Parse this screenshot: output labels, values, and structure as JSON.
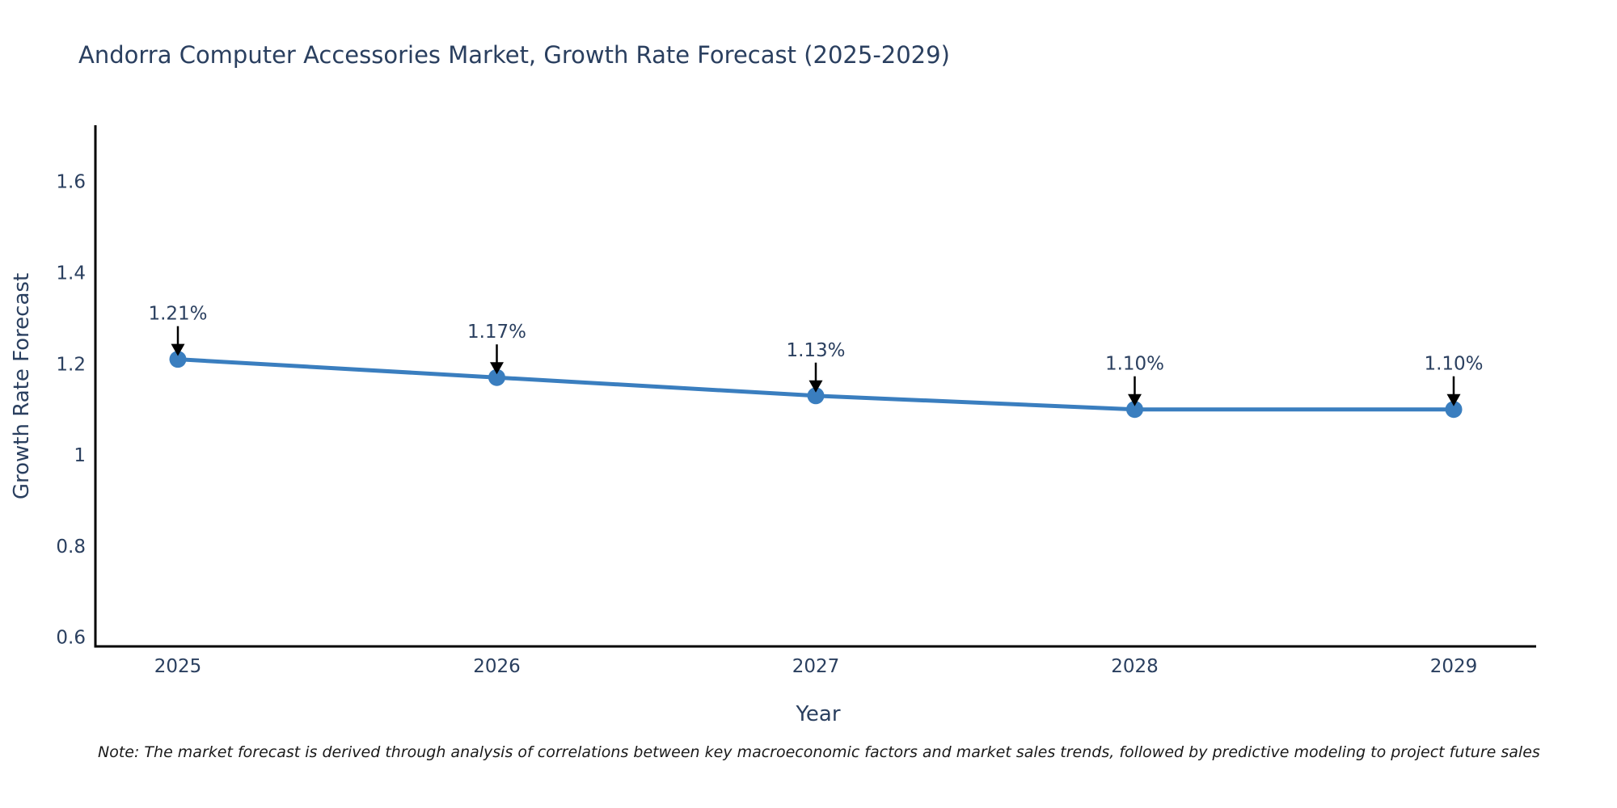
{
  "chart_data": {
    "type": "line",
    "title": "Andorra Computer Accessories Market, Growth Rate Forecast (2025-2029)",
    "xlabel": "Year",
    "ylabel": "Growth Rate Forecast",
    "x": [
      2025,
      2026,
      2027,
      2028,
      2029
    ],
    "series": [
      {
        "name": "Growth Rate Forecast",
        "values": [
          1.21,
          1.17,
          1.13,
          1.1,
          1.1
        ],
        "point_labels": [
          "1.21%",
          "1.17%",
          "1.13%",
          "1.10%",
          "1.10%"
        ]
      }
    ],
    "xtick_labels": [
      "2025",
      "2026",
      "2027",
      "2028",
      "2029"
    ],
    "yticks": [
      0.6,
      0.8,
      1,
      1.2,
      1.4,
      1.6
    ],
    "ytick_labels": [
      "0.6",
      "0.8",
      "1",
      "1.2",
      "1.4",
      "1.6"
    ],
    "ylim": [
      0.58,
      1.72
    ],
    "grid": false,
    "legend": false,
    "footnote": "Note: The market forecast is derived through analysis of correlations between key macroeconomic factors and market sales trends, followed by predictive modeling to project future sales",
    "colors": {
      "line": "#3a7ebf",
      "marker": "#3a7ebf",
      "text": "#2a3f5f",
      "axis": "#000000",
      "arrow": "#000000",
      "note_text": "#1a1a1a",
      "background": "#ffffff"
    }
  }
}
